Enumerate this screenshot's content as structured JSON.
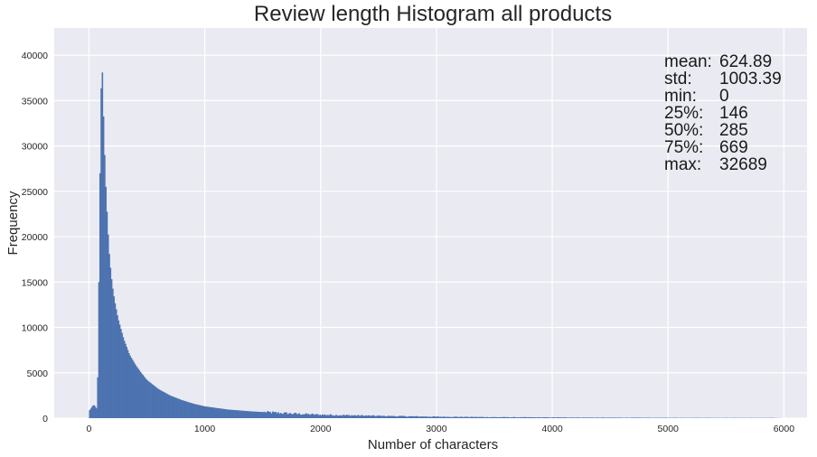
{
  "chart_data": {
    "type": "bar",
    "title": "Review length Histogram all products",
    "xlabel": "Number of characters",
    "ylabel": "Frequency",
    "xlim": [
      -300,
      6200
    ],
    "ylim": [
      0,
      43000
    ],
    "xticks": [
      0,
      1000,
      2000,
      3000,
      4000,
      5000,
      6000
    ],
    "yticks": [
      0,
      5000,
      10000,
      15000,
      20000,
      25000,
      30000,
      35000,
      40000
    ],
    "grid": true,
    "bar_color": "#4c72b0",
    "bin_width": 10,
    "profile": [
      [
        0,
        800
      ],
      [
        40,
        1500
      ],
      [
        70,
        1000
      ],
      [
        80,
        8000
      ],
      [
        90,
        22000
      ],
      [
        100,
        32000
      ],
      [
        110,
        40700
      ],
      [
        120,
        35500
      ],
      [
        130,
        31000
      ],
      [
        140,
        27000
      ],
      [
        150,
        24000
      ],
      [
        160,
        21500
      ],
      [
        170,
        19000
      ],
      [
        180,
        17200
      ],
      [
        200,
        14700
      ],
      [
        220,
        13000
      ],
      [
        250,
        11000
      ],
      [
        300,
        8700
      ],
      [
        350,
        7000
      ],
      [
        400,
        5900
      ],
      [
        450,
        5000
      ],
      [
        500,
        4200
      ],
      [
        600,
        3200
      ],
      [
        700,
        2500
      ],
      [
        800,
        2000
      ],
      [
        900,
        1600
      ],
      [
        1000,
        1300
      ],
      [
        1200,
        950
      ],
      [
        1400,
        750
      ],
      [
        1600,
        600
      ],
      [
        1800,
        480
      ],
      [
        2000,
        380
      ],
      [
        2500,
        250
      ],
      [
        3000,
        160
      ],
      [
        3500,
        110
      ],
      [
        4000,
        80
      ],
      [
        4500,
        55
      ],
      [
        5000,
        40
      ],
      [
        5500,
        30
      ],
      [
        5900,
        25
      ],
      [
        6000,
        0
      ]
    ],
    "annotations": [
      {
        "label": "mean:",
        "value": "624.89"
      },
      {
        "label": "std:",
        "value": "1003.39"
      },
      {
        "label": "min:",
        "value": "0"
      },
      {
        "label": "25%:",
        "value": "146"
      },
      {
        "label": "50%:",
        "value": "285"
      },
      {
        "label": "75%:",
        "value": "669"
      },
      {
        "label": "max:",
        "value": "32689"
      }
    ]
  }
}
